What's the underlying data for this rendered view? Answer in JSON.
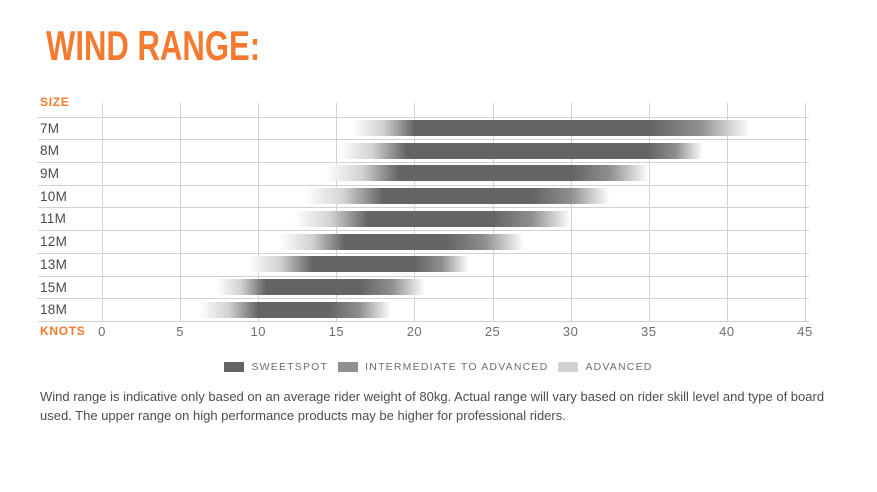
{
  "title": "WIND RANGE:",
  "colors": {
    "accent": "#F5792E",
    "sweetspot": "#646464",
    "intermediate": "#8f8f8f",
    "advanced": "#d2d2d2",
    "grid": "#d0d0d0",
    "axis_text": "#6d6d6d",
    "row_label_text": "#4a4a4a",
    "footer_text": "#4d4d4d"
  },
  "chart_data": {
    "type": "bar",
    "subtype": "horizontal-range-gradient",
    "size_label": "SIZE",
    "x_label": "KNOTS",
    "x_ticks": [
      0,
      5,
      10,
      15,
      20,
      25,
      30,
      35,
      40,
      45
    ],
    "x_range": [
      0,
      45
    ],
    "grid": true,
    "rows": [
      {
        "size": "7M",
        "start": 16.0,
        "sweet_start": 20.0,
        "sweet_end": 35.0,
        "end": 41.5
      },
      {
        "size": "8M",
        "start": 15.2,
        "sweet_start": 19.5,
        "sweet_end": 35.0,
        "end": 38.5
      },
      {
        "size": "9M",
        "start": 14.3,
        "sweet_start": 19.0,
        "sweet_end": 30.0,
        "end": 35.0
      },
      {
        "size": "10M",
        "start": 13.0,
        "sweet_start": 18.0,
        "sweet_end": 27.5,
        "end": 32.5
      },
      {
        "size": "11M",
        "start": 12.3,
        "sweet_start": 17.0,
        "sweet_end": 25.0,
        "end": 30.0
      },
      {
        "size": "12M",
        "start": 11.3,
        "sweet_start": 15.5,
        "sweet_end": 22.0,
        "end": 27.0
      },
      {
        "size": "13M",
        "start": 9.3,
        "sweet_start": 13.5,
        "sweet_end": 20.0,
        "end": 23.5
      },
      {
        "size": "15M",
        "start": 7.3,
        "sweet_start": 10.5,
        "sweet_end": 16.5,
        "end": 20.7
      },
      {
        "size": "18M",
        "start": 6.2,
        "sweet_start": 10.0,
        "sweet_end": 14.5,
        "end": 18.5
      }
    ]
  },
  "legend": [
    {
      "label": "SWEETSPOT",
      "color_key": "sweetspot"
    },
    {
      "label": "INTERMEDIATE TO ADVANCED",
      "color_key": "intermediate"
    },
    {
      "label": "ADVANCED",
      "color_key": "advanced"
    }
  ],
  "footer": "Wind range is indicative only based on an average rider weight of 80kg. Actual range will vary based on rider skill level and type of board used. The upper range on high performance products may be higher for professional riders."
}
